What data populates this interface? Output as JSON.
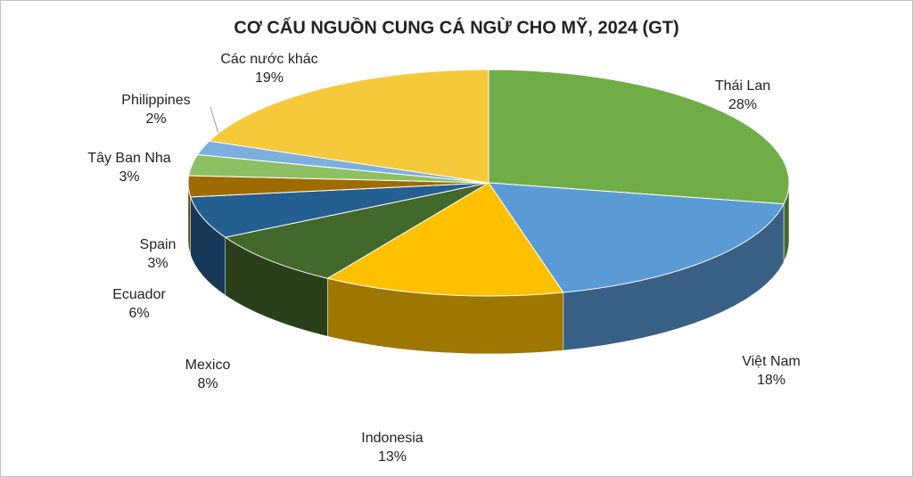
{
  "chart_data": {
    "type": "pie3d",
    "title": "CƠ CẤU NGUỒN CUNG CÁ NGỪ CHO MỸ, 2024 (GT)",
    "categories": [
      "Thái Lan",
      "Việt Nam",
      "Indonesia",
      "Mexico",
      "Ecuador",
      "Spain",
      "Tây Ban Nha",
      "Philippines",
      "Các nước khác"
    ],
    "values": [
      28,
      18,
      13,
      8,
      6,
      3,
      3,
      2,
      19
    ],
    "value_labels": [
      "28%",
      "18%",
      "13%",
      "8%",
      "6%",
      "3%",
      "3%",
      "2%",
      "19%"
    ],
    "colors": [
      "#70ad47",
      "#5b9bd5",
      "#ffc000",
      "#43682b",
      "#255e91",
      "#9e6b00",
      "#8cc063",
      "#7cafdd",
      "#f5c93a"
    ]
  }
}
